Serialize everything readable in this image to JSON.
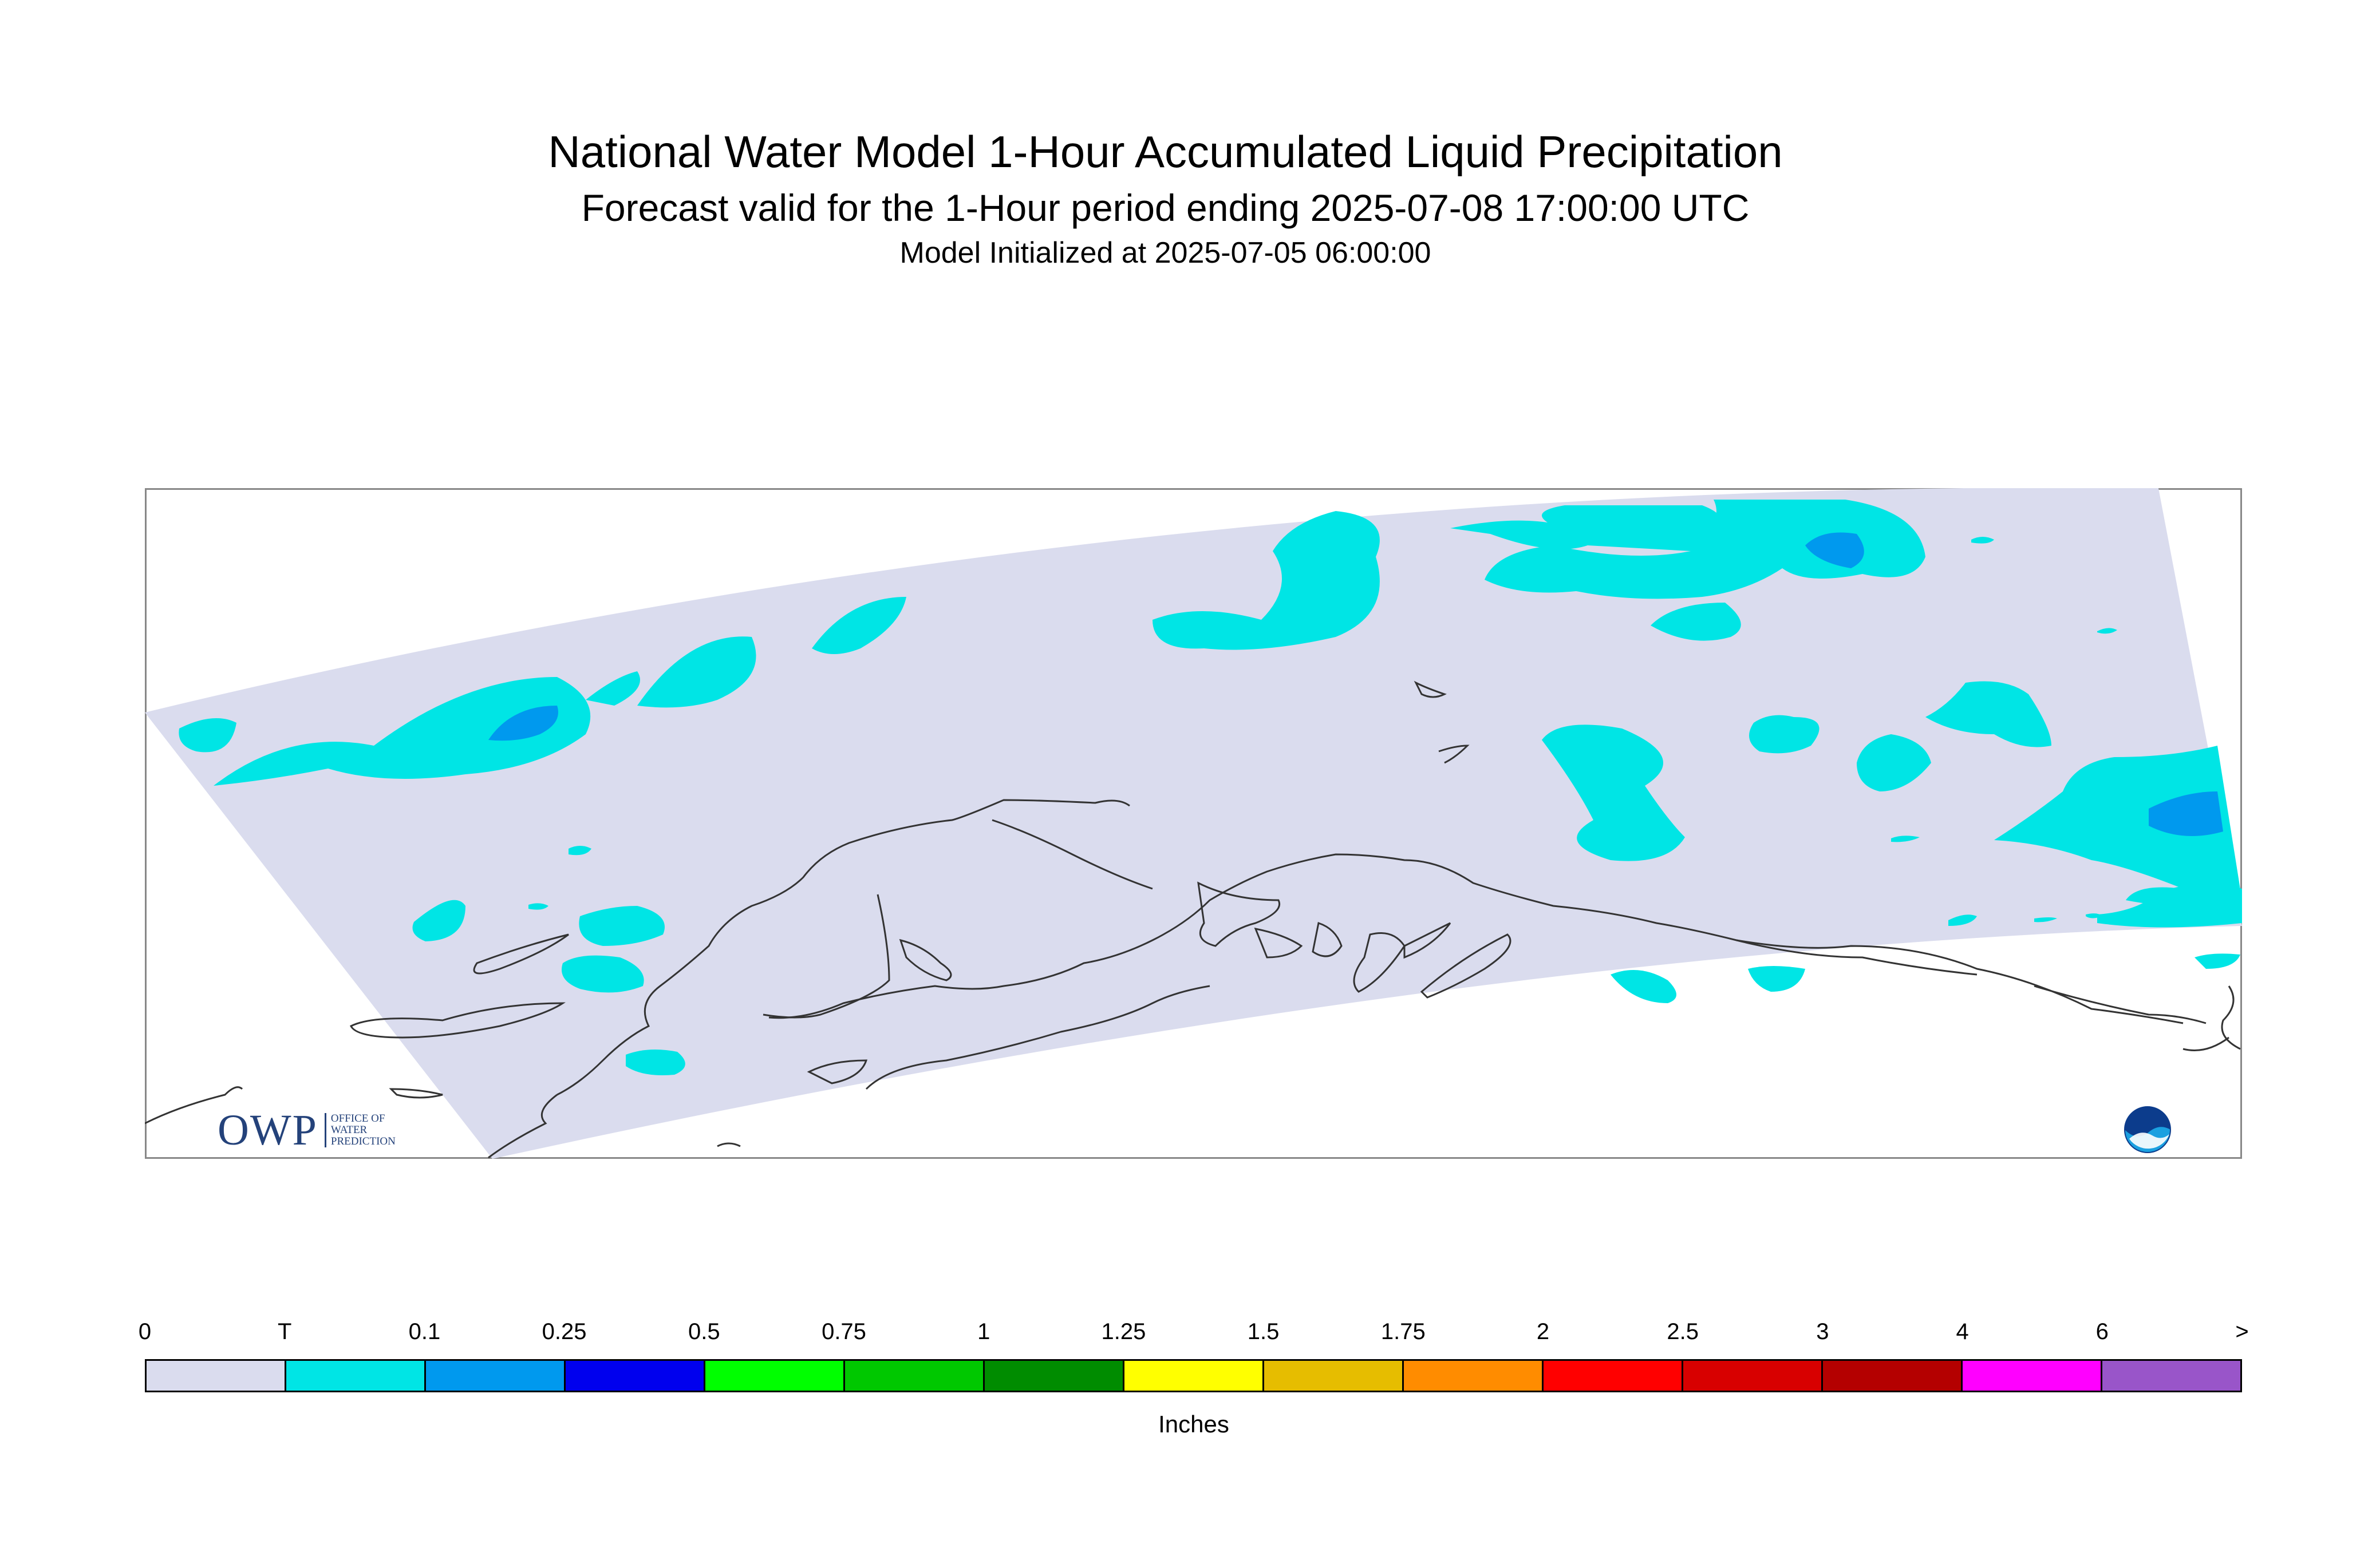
{
  "header": {
    "title": "National Water Model 1-Hour Accumulated Liquid Precipitation",
    "subtitle": "Forecast valid for the 1-Hour period ending 2025-07-08 17:00:00 UTC",
    "initialized": "Model Initialized at 2025-07-05 06:00:00"
  },
  "legend": {
    "units": "Inches",
    "ticks": [
      "0",
      "T",
      "0.1",
      "0.25",
      "0.5",
      "0.75",
      "1",
      "1.25",
      "1.5",
      "1.75",
      "2",
      "2.5",
      "3",
      "4",
      "6",
      ">"
    ],
    "colors": [
      "#dadcee",
      "#00e5e5",
      "#0099ee",
      "#0000ee",
      "#00ff00",
      "#00c800",
      "#008c00",
      "#ffff00",
      "#e6bd00",
      "#ff8c00",
      "#ff0000",
      "#d80000",
      "#b40000",
      "#ff00ff",
      "#9955c9"
    ]
  },
  "map": {
    "domain_color": "#dadcee",
    "trace_color": "#00e5e5",
    "light_color": "#0099ee",
    "coast_color": "#333333"
  },
  "logos": {
    "owp_letters": "OWP",
    "owp_line1": "OFFICE OF",
    "owp_line2": "WATER",
    "owp_line3": "PREDICTION",
    "owp_icon": "owp-logo-icon",
    "noaa_icon": "noaa-logo-icon"
  }
}
